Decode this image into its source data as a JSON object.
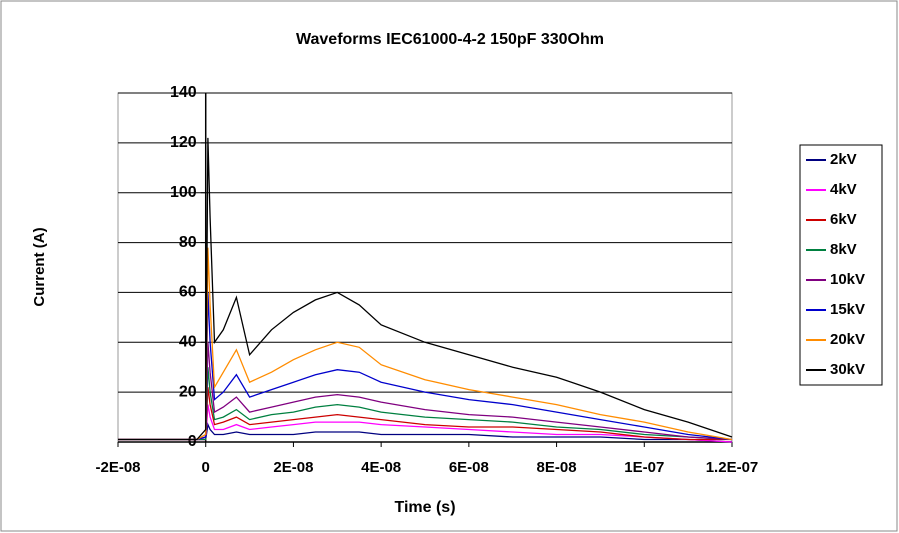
{
  "chart_data": {
    "type": "line",
    "title": "Waveforms IEC61000-4-2 150pF 330Ohm",
    "xlabel": "Time (s)",
    "ylabel": "Current (A)",
    "x": [
      -2e-08,
      -1e-08,
      -2e-09,
      0,
      5e-10,
      1e-09,
      2e-09,
      4e-09,
      7e-09,
      1e-08,
      1.5e-08,
      2e-08,
      2.5e-08,
      3e-08,
      3.5e-08,
      4e-08,
      5e-08,
      6e-08,
      7e-08,
      8e-08,
      9e-08,
      1e-07,
      1.1e-07,
      1.2e-07
    ],
    "series": [
      {
        "name": "2kV",
        "color": "#000080",
        "values": [
          1,
          1,
          1,
          1,
          7,
          5,
          3,
          3,
          4,
          3,
          3,
          3,
          4,
          4,
          4,
          3,
          3,
          3,
          2,
          2,
          2,
          1,
          1,
          0
        ]
      },
      {
        "name": "4kV",
        "color": "#ff00ff",
        "values": [
          1,
          1,
          1,
          1,
          15,
          10,
          5,
          5,
          7,
          5,
          6,
          7,
          8,
          8,
          8,
          7,
          6,
          5,
          4,
          3,
          3,
          2,
          1,
          0
        ]
      },
      {
        "name": "6kV",
        "color": "#cc0000",
        "values": [
          1,
          1,
          1,
          1,
          22,
          15,
          7,
          8,
          10,
          7,
          8,
          9,
          10,
          11,
          10,
          9,
          7,
          6,
          6,
          5,
          4,
          2,
          1,
          1
        ]
      },
      {
        "name": "8kV",
        "color": "#008040",
        "values": [
          1,
          1,
          1,
          1,
          30,
          20,
          9,
          10,
          13,
          9,
          11,
          12,
          14,
          15,
          14,
          12,
          10,
          9,
          8,
          6,
          5,
          3,
          2,
          1
        ]
      },
      {
        "name": "10kV",
        "color": "#800080",
        "values": [
          1,
          1,
          1,
          2,
          40,
          28,
          12,
          14,
          18,
          12,
          14,
          16,
          18,
          19,
          18,
          16,
          13,
          11,
          10,
          8,
          6,
          4,
          2,
          1
        ]
      },
      {
        "name": "15kV",
        "color": "#0000cc",
        "values": [
          1,
          1,
          1,
          2,
          60,
          40,
          17,
          20,
          27,
          18,
          21,
          24,
          27,
          29,
          28,
          24,
          20,
          17,
          15,
          12,
          9,
          6,
          3,
          1
        ]
      },
      {
        "name": "20kV",
        "color": "#ff8c00",
        "values": [
          1,
          1,
          1,
          3,
          78,
          55,
          22,
          28,
          37,
          24,
          28,
          33,
          37,
          40,
          38,
          31,
          25,
          21,
          18,
          15,
          11,
          8,
          4,
          1
        ]
      },
      {
        "name": "30kV",
        "color": "#000000",
        "values": [
          1,
          1,
          1,
          5,
          122,
          90,
          40,
          45,
          58,
          35,
          45,
          52,
          57,
          60,
          55,
          47,
          40,
          35,
          30,
          26,
          20,
          13,
          8,
          2
        ]
      }
    ],
    "xlim": [
      -2e-08,
      1.2e-07
    ],
    "xticks": [
      {
        "value": -2e-08,
        "label": "-2E-08"
      },
      0,
      {
        "value": 2e-08,
        "label": "2E-08"
      },
      {
        "value": 4e-08,
        "label": "4E-08"
      },
      {
        "value": 6e-08,
        "label": "6E-08"
      },
      {
        "value": 8e-08,
        "label": "8E-08"
      },
      {
        "value": 1e-07,
        "label": "1E-07"
      },
      {
        "value": 1.2e-07,
        "label": "1.2E-07"
      }
    ],
    "ylim": [
      0,
      140
    ],
    "yticks": [
      0,
      20,
      40,
      60,
      80,
      100,
      120,
      140
    ],
    "grid": true,
    "legend": "right"
  }
}
